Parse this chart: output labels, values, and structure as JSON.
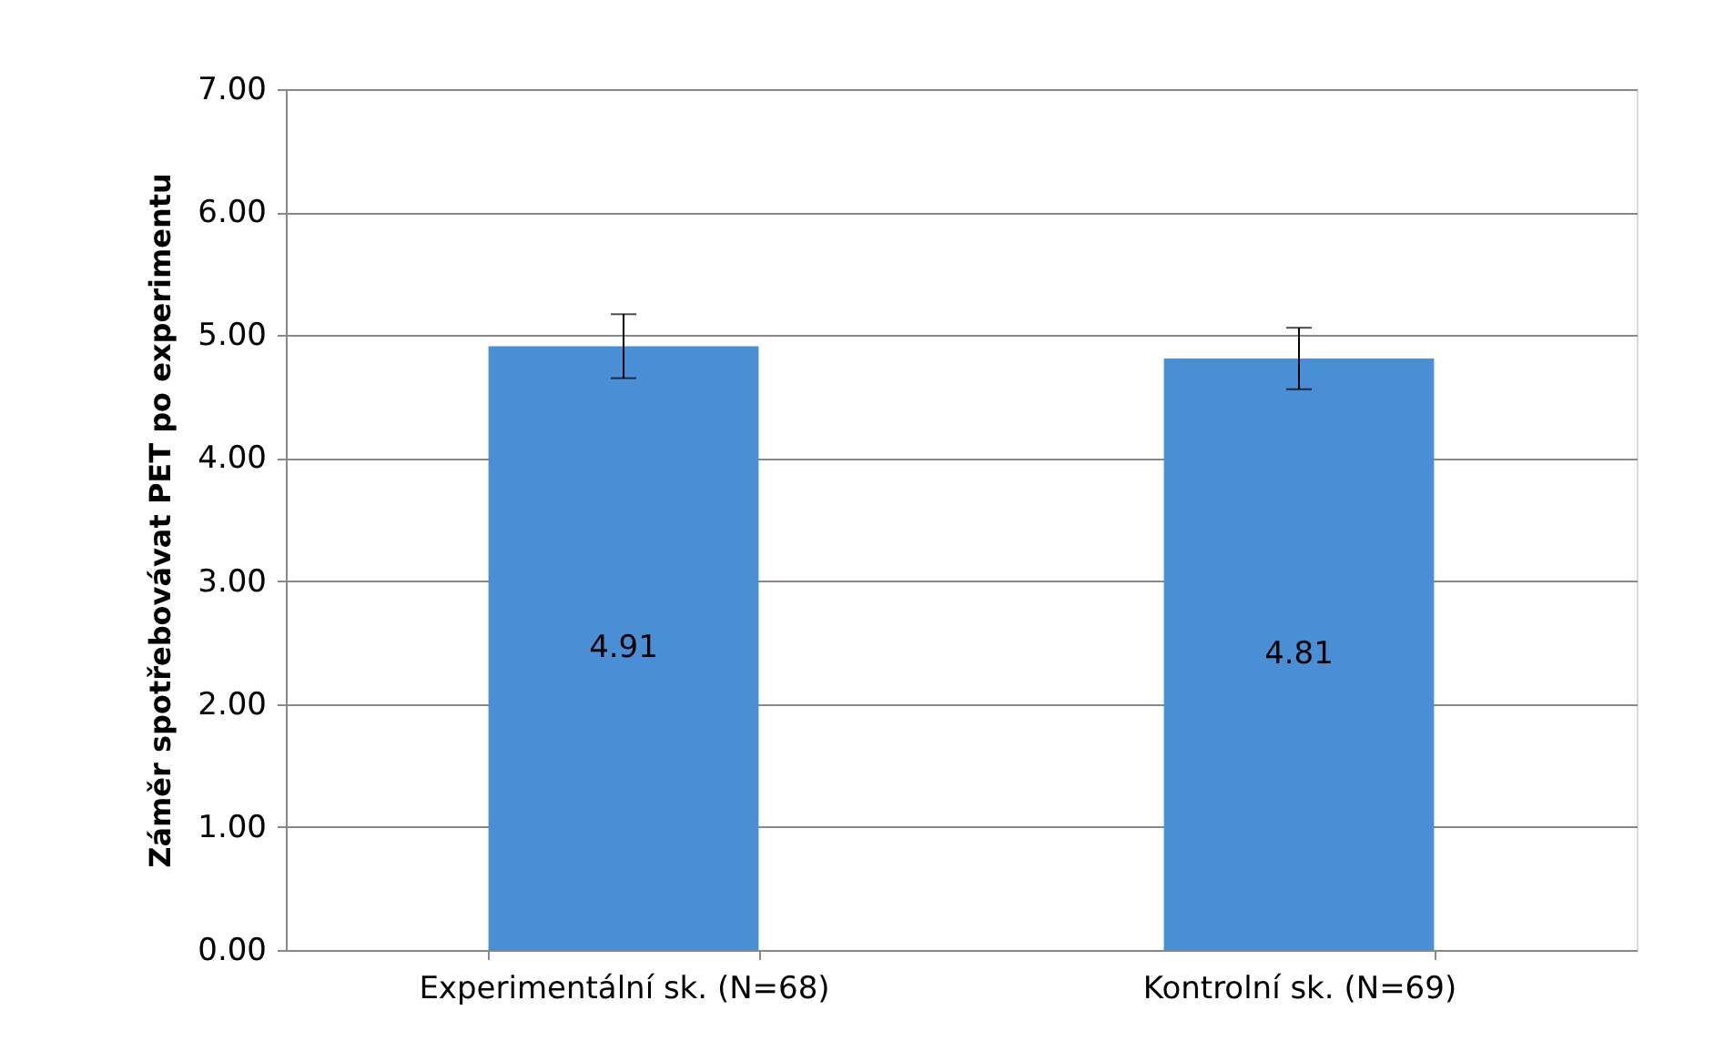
{
  "chart_data": {
    "type": "bar",
    "ylabel": "Záměr spotřebovávat PET po experimentu",
    "categories": [
      "Experimentální sk. (N=68)",
      "Kontrolní sk. (N=69)"
    ],
    "values": [
      4.91,
      4.81
    ],
    "color": "#4a8fd6",
    "errors": [
      0.26,
      0.25
    ],
    "data_labels": true,
    "ylim": [
      0,
      7
    ],
    "yticks": [
      {
        "value": 0,
        "label": "0.00"
      },
      {
        "value": 1,
        "label": "1.00"
      },
      {
        "value": 2,
        "label": "2.00"
      },
      {
        "value": 3,
        "label": "3.00"
      },
      {
        "value": 4,
        "label": "4.00"
      },
      {
        "value": 5,
        "label": "5.00"
      },
      {
        "value": 6,
        "label": "6.00"
      },
      {
        "value": 7,
        "label": "7.00"
      }
    ],
    "grid": "y"
  }
}
